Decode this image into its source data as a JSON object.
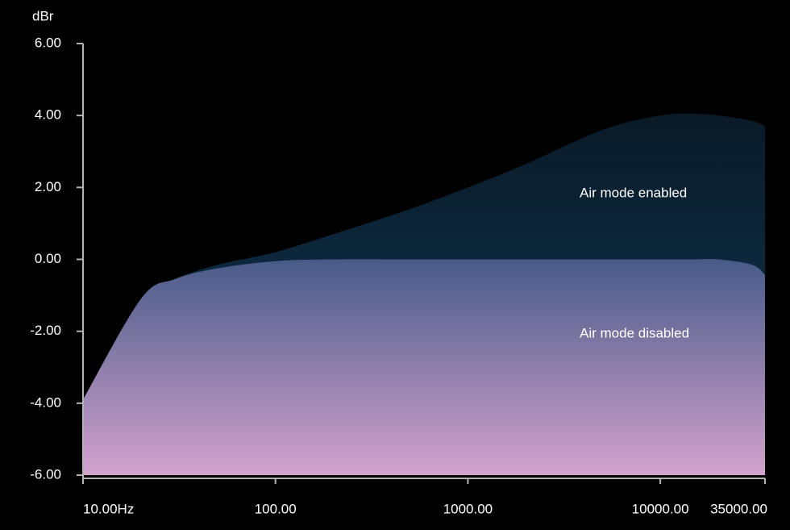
{
  "chart_data": {
    "type": "area",
    "y_label": "dBr",
    "x": [
      10,
      20,
      30,
      50,
      100,
      200,
      500,
      1000,
      2000,
      5000,
      10000,
      15000,
      20000,
      30000,
      35000
    ],
    "series": [
      {
        "name": "Air mode enabled",
        "gradient": [
          "#0a1a27",
          "#0f3a5a"
        ],
        "values": [
          -3.9,
          -1.1,
          -0.55,
          -0.15,
          0.2,
          0.7,
          1.4,
          2.0,
          2.65,
          3.6,
          4.0,
          4.05,
          4.0,
          3.85,
          3.7
        ]
      },
      {
        "name": "Air mode disabled",
        "gradient": [
          "#485a88",
          "#d2a3cd"
        ],
        "values": [
          -3.9,
          -1.1,
          -0.55,
          -0.25,
          -0.05,
          0,
          0,
          0,
          0,
          0,
          0,
          0,
          0,
          -0.15,
          -0.43
        ]
      }
    ],
    "x_log": true,
    "xlim": [
      10,
      35000
    ],
    "xticks": [
      {
        "value": 10,
        "label": "10.00Hz"
      },
      {
        "value": 100,
        "label": "100.00"
      },
      {
        "value": 1000,
        "label": "1000.00"
      },
      {
        "value": 10000,
        "label": "10000.00"
      },
      {
        "value": 35000,
        "label": "35000.00"
      }
    ],
    "ylim": [
      -6,
      6
    ],
    "yticks": [
      {
        "value": -6,
        "label": "-6.00"
      },
      {
        "value": -4,
        "label": "-4.00"
      },
      {
        "value": -2,
        "label": "-2.00"
      },
      {
        "value": 0,
        "label": "0.00"
      },
      {
        "value": 2,
        "label": "2.00"
      },
      {
        "value": 4,
        "label": "4.00"
      },
      {
        "value": 6,
        "label": "6.00"
      }
    ]
  }
}
